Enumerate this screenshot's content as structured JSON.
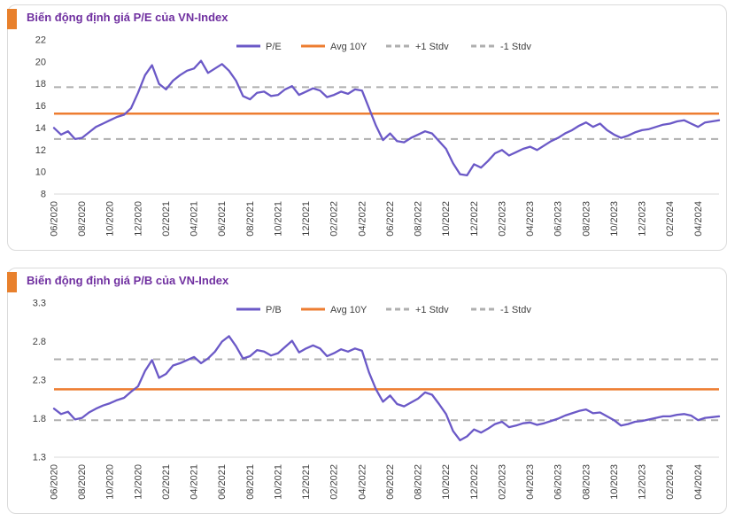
{
  "colors": {
    "series": "#6B59C7",
    "avg": "#ED7D31",
    "stdv": "#AFAFAF",
    "title": "#7030A0",
    "accent": "#E8802C",
    "tick_text": "#404040",
    "panel_border": "#DADADA",
    "axis_line": "#D9D9D9"
  },
  "chart_data": [
    {
      "type": "line",
      "title": "Biến động định giá P/E của VN-Index",
      "ylim": [
        8,
        22
      ],
      "yticks": [
        8,
        10,
        12,
        14,
        16,
        18,
        20,
        22
      ],
      "ytick_decimals": 0,
      "x_tick_step": 4,
      "x_tick_labels": [
        "06/2020",
        "08/2020",
        "10/2020",
        "12/2020",
        "02/2021",
        "04/2021",
        "06/2021",
        "08/2021",
        "10/2021",
        "12/2021",
        "02/2022",
        "04/2022",
        "06/2022",
        "08/2022",
        "10/2022",
        "12/2022",
        "02/2023",
        "04/2023",
        "06/2023",
        "08/2023",
        "10/2023",
        "12/2023",
        "02/2024",
        "04/2024"
      ],
      "legend": [
        {
          "label": "P/E",
          "style": "series"
        },
        {
          "label": "Avg 10Y",
          "style": "avg"
        },
        {
          "label": "+1 Stdv",
          "style": "stdv"
        },
        {
          "label": "-1 Stdv",
          "style": "stdv"
        }
      ],
      "reference_lines": {
        "avg_10y": 15.3,
        "plus_1_stdv": 17.7,
        "minus_1_stdv": 13.0
      },
      "series": [
        {
          "name": "P/E",
          "values": [
            14.0,
            13.4,
            13.7,
            13.0,
            13.1,
            13.6,
            14.1,
            14.4,
            14.7,
            15.0,
            15.2,
            15.8,
            17.2,
            18.8,
            19.7,
            18.0,
            17.5,
            18.3,
            18.8,
            19.2,
            19.4,
            20.1,
            19.0,
            19.4,
            19.8,
            19.2,
            18.3,
            16.9,
            16.6,
            17.2,
            17.3,
            16.9,
            17.0,
            17.5,
            17.8,
            17.0,
            17.3,
            17.6,
            17.4,
            16.8,
            17.0,
            17.3,
            17.1,
            17.5,
            17.4,
            15.8,
            14.2,
            12.9,
            13.5,
            12.8,
            12.7,
            13.1,
            13.4,
            13.7,
            13.5,
            12.8,
            12.1,
            10.8,
            9.8,
            9.7,
            10.7,
            10.4,
            11.0,
            11.7,
            12.0,
            11.5,
            11.8,
            12.1,
            12.3,
            12.0,
            12.4,
            12.8,
            13.1,
            13.5,
            13.8,
            14.2,
            14.5,
            14.1,
            14.4,
            13.8,
            13.4,
            13.1,
            13.3,
            13.6,
            13.8,
            13.9,
            14.1,
            14.3,
            14.4,
            14.6,
            14.7,
            14.4,
            14.1,
            14.5,
            14.6,
            14.7
          ]
        }
      ]
    },
    {
      "type": "line",
      "title": "Biến động định giá P/B của VN-Index",
      "ylim": [
        1.3,
        3.3
      ],
      "yticks": [
        1.3,
        1.8,
        2.3,
        2.8,
        3.3
      ],
      "ytick_decimals": 1,
      "x_tick_step": 4,
      "x_tick_labels": [
        "06/2020",
        "08/2020",
        "10/2020",
        "12/2020",
        "02/2021",
        "04/2021",
        "06/2021",
        "08/2021",
        "10/2021",
        "12/2021",
        "02/2022",
        "04/2022",
        "06/2022",
        "08/2022",
        "10/2022",
        "12/2022",
        "02/2023",
        "04/2023",
        "06/2023",
        "08/2023",
        "10/2023",
        "12/2023",
        "02/2024",
        "04/2024"
      ],
      "legend": [
        {
          "label": "P/B",
          "style": "series"
        },
        {
          "label": "Avg 10Y",
          "style": "avg"
        },
        {
          "label": "+1 Stdv",
          "style": "stdv"
        },
        {
          "label": "-1 Stdv",
          "style": "stdv"
        }
      ],
      "reference_lines": {
        "avg_10y": 2.18,
        "plus_1_stdv": 2.57,
        "minus_1_stdv": 1.78
      },
      "series": [
        {
          "name": "P/B",
          "values": [
            1.93,
            1.86,
            1.89,
            1.79,
            1.81,
            1.88,
            1.93,
            1.97,
            2.0,
            2.04,
            2.07,
            2.15,
            2.22,
            2.42,
            2.56,
            2.33,
            2.38,
            2.49,
            2.52,
            2.56,
            2.6,
            2.52,
            2.58,
            2.67,
            2.8,
            2.87,
            2.74,
            2.58,
            2.61,
            2.69,
            2.67,
            2.62,
            2.65,
            2.73,
            2.81,
            2.66,
            2.71,
            2.75,
            2.71,
            2.61,
            2.65,
            2.7,
            2.67,
            2.71,
            2.68,
            2.4,
            2.18,
            2.02,
            2.1,
            1.99,
            1.96,
            2.01,
            2.06,
            2.14,
            2.11,
            1.99,
            1.86,
            1.64,
            1.52,
            1.57,
            1.66,
            1.62,
            1.67,
            1.73,
            1.76,
            1.69,
            1.71,
            1.74,
            1.75,
            1.72,
            1.74,
            1.77,
            1.8,
            1.84,
            1.87,
            1.9,
            1.92,
            1.87,
            1.88,
            1.83,
            1.78,
            1.71,
            1.73,
            1.76,
            1.77,
            1.79,
            1.81,
            1.83,
            1.83,
            1.85,
            1.86,
            1.84,
            1.78,
            1.81,
            1.82,
            1.83
          ]
        }
      ]
    }
  ]
}
